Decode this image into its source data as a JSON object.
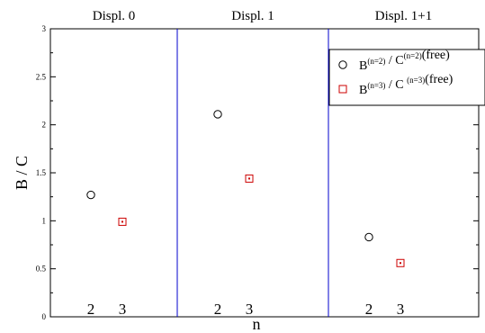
{
  "chart_data": {
    "type": "scatter",
    "title": "",
    "xlabel": "n",
    "ylabel": "B / C",
    "ylim": [
      0,
      3
    ],
    "y_ticks": [
      {
        "value": 0,
        "label": "0"
      },
      {
        "value": 0.5,
        "label": "0.5"
      },
      {
        "value": 1,
        "label": "1"
      },
      {
        "value": 1.5,
        "label": "1.5"
      },
      {
        "value": 2,
        "label": "2"
      },
      {
        "value": 2.5,
        "label": "2.5"
      },
      {
        "value": 3,
        "label": "3"
      }
    ],
    "grid": false,
    "legend_position": "top-right",
    "panels": [
      {
        "title": "Displ. 0",
        "n_labels": [
          "2",
          "3"
        ]
      },
      {
        "title": "Displ. 1",
        "n_labels": [
          "2",
          "3"
        ]
      },
      {
        "title": "Displ. 1+1",
        "n_labels": [
          "2",
          "3"
        ]
      }
    ],
    "series": [
      {
        "legend_base": "B",
        "legend_sup": "(n=2)",
        "legend_sep": " / C",
        "legend_sup2": "(n=2)",
        "legend_suffix": "(free)",
        "marker": "circle",
        "color": "#000000",
        "points": [
          {
            "panel": 0,
            "n": 2,
            "value": 1.27
          },
          {
            "panel": 1,
            "n": 2,
            "value": 2.11
          },
          {
            "panel": 2,
            "n": 2,
            "value": 0.83
          }
        ]
      },
      {
        "legend_base": "B",
        "legend_sup": "(n=3)",
        "legend_sep": " / C ",
        "legend_sup2": "(n=3)",
        "legend_suffix": "(free)",
        "marker": "square",
        "color": "#cc0000",
        "points": [
          {
            "panel": 0,
            "n": 3,
            "value": 0.99
          },
          {
            "panel": 1,
            "n": 3,
            "value": 1.44
          },
          {
            "panel": 2,
            "n": 3,
            "value": 0.56
          }
        ]
      }
    ],
    "divider_color": "#0000cc"
  }
}
